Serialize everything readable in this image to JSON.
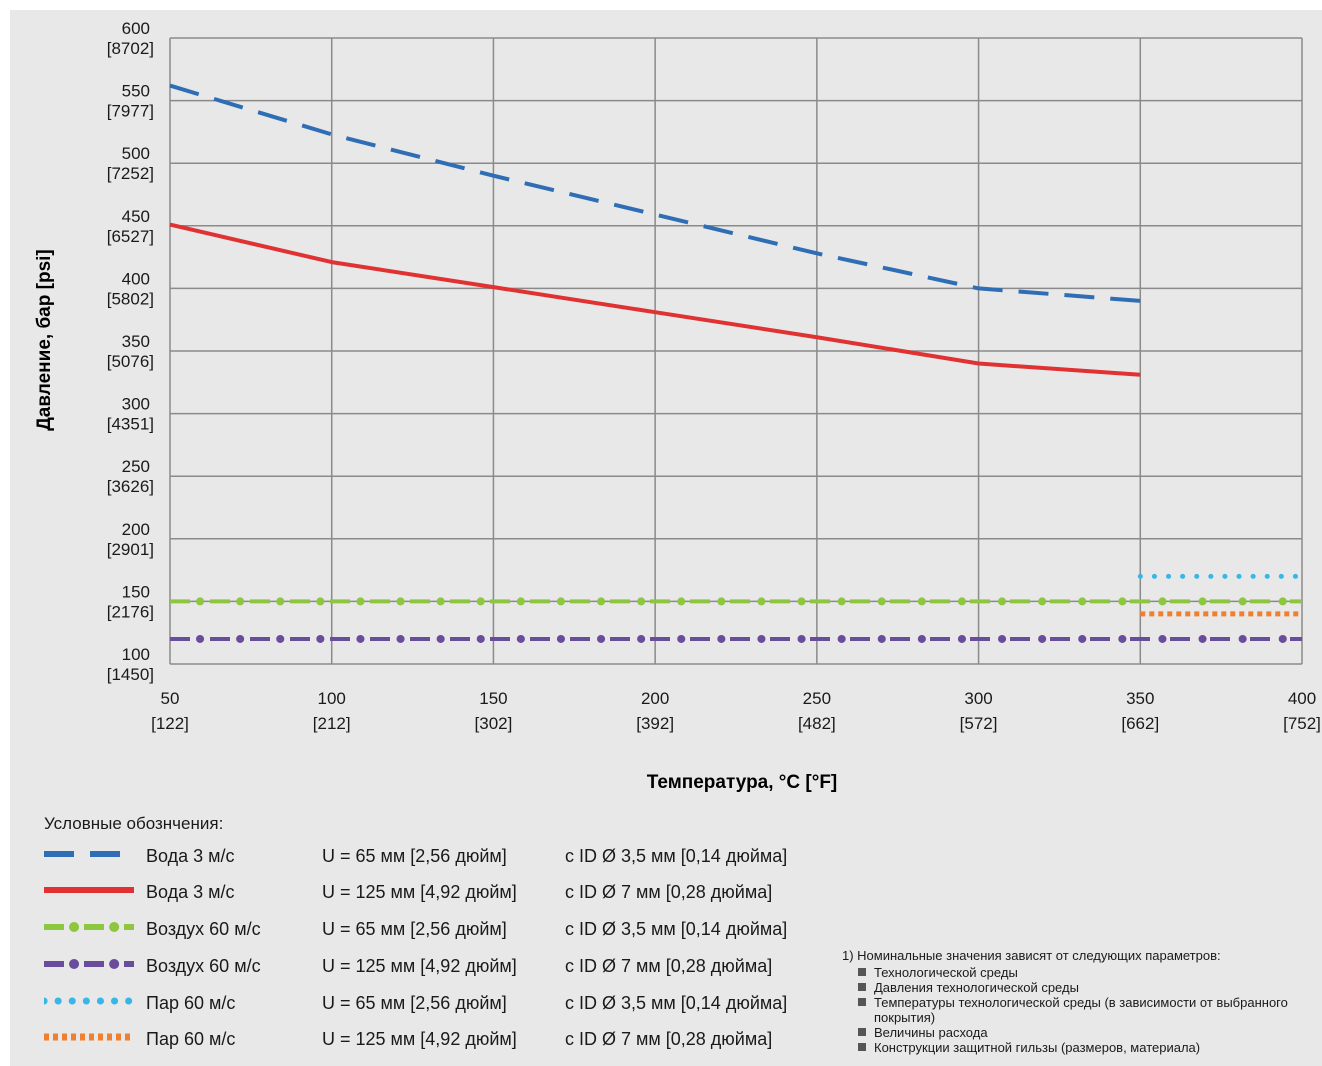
{
  "chart_data": {
    "type": "line",
    "xlabel": "Температура, °C [°F]",
    "ylabel": "Давление, бар [psi]",
    "xlim": [
      50,
      400
    ],
    "ylim": [
      100,
      600
    ],
    "grid": true,
    "x_ticks": [
      {
        "value": 50,
        "label": "50",
        "sub": "[122]"
      },
      {
        "value": 100,
        "label": "100",
        "sub": "[212]"
      },
      {
        "value": 150,
        "label": "150",
        "sub": "[302]"
      },
      {
        "value": 200,
        "label": "200",
        "sub": "[392]"
      },
      {
        "value": 250,
        "label": "250",
        "sub": "[482]"
      },
      {
        "value": 300,
        "label": "300",
        "sub": "[572]"
      },
      {
        "value": 350,
        "label": "350",
        "sub": "[662]"
      },
      {
        "value": 400,
        "label": "400",
        "sub": "[752]"
      }
    ],
    "y_ticks": [
      {
        "value": 100,
        "label": "100",
        "sub": "[1450]"
      },
      {
        "value": 150,
        "label": "150",
        "sub": "[2176]"
      },
      {
        "value": 200,
        "label": "200",
        "sub": "[2901]"
      },
      {
        "value": 250,
        "label": "250",
        "sub": "[3626]"
      },
      {
        "value": 300,
        "label": "300",
        "sub": "[4351]"
      },
      {
        "value": 350,
        "label": "350",
        "sub": "[5076]"
      },
      {
        "value": 400,
        "label": "400",
        "sub": "[5802]"
      },
      {
        "value": 450,
        "label": "450",
        "sub": "[6527]"
      },
      {
        "value": 500,
        "label": "500",
        "sub": "[7252]"
      },
      {
        "value": 550,
        "label": "550",
        "sub": "[7977]"
      },
      {
        "value": 600,
        "label": "600",
        "sub": "[8702]"
      }
    ],
    "series": [
      {
        "name": "Вода 3 м/с",
        "color": "#2f6eb5",
        "style": "dash",
        "x": [
          50,
          100,
          150,
          200,
          250,
          300,
          350
        ],
        "y": [
          562,
          523,
          490,
          459,
          428,
          400,
          390
        ]
      },
      {
        "name": "Вода 3 м/с",
        "color": "#e03232",
        "style": "solid",
        "x": [
          50,
          100,
          150,
          200,
          250,
          300,
          350
        ],
        "y": [
          451,
          421,
          401,
          381,
          361,
          340,
          331
        ]
      },
      {
        "name": "Воздух 60 м/с",
        "color": "#8dc63f",
        "style": "dashdot",
        "x": [
          50,
          400
        ],
        "y": [
          150,
          150
        ]
      },
      {
        "name": "Воздух 60 м/с",
        "color": "#6a4c9c",
        "style": "dashdot",
        "x": [
          50,
          400
        ],
        "y": [
          120,
          120
        ]
      },
      {
        "name": "Пар 60 м/с",
        "color": "#38b6e8",
        "style": "dot",
        "x": [
          350,
          400
        ],
        "y": [
          170,
          170
        ]
      },
      {
        "name": "Пар 60 м/с",
        "color": "#f07f2e",
        "style": "shortdash",
        "x": [
          350,
          400
        ],
        "y": [
          140,
          140
        ]
      }
    ]
  },
  "legend": {
    "title": "Условные обознчения:",
    "rows": [
      {
        "medium": "Вода 3 м/с",
        "u": "U = 65 мм [2,56 дюйм]",
        "id": "с ID Ø 3,5 мм [0,14 дюйма]"
      },
      {
        "medium": "Вода 3 м/с",
        "u": "U = 125 мм [4,92 дюйм]",
        "id": "с ID Ø 7 мм [0,28 дюйма]"
      },
      {
        "medium": "Воздух 60 м/с",
        "u": "U = 65 мм [2,56 дюйм]",
        "id": "с ID Ø 3,5 мм [0,14 дюйма]"
      },
      {
        "medium": "Воздух 60 м/с",
        "u": "U = 125 мм [4,92 дюйм]",
        "id": "с ID Ø 7 мм [0,28 дюйма]"
      },
      {
        "medium": "Пар 60 м/с",
        "u": "U = 65 мм [2,56 дюйм]",
        "id": "с ID Ø 3,5 мм [0,14 дюйма]"
      },
      {
        "medium": "Пар 60 м/с",
        "u": "U = 125 мм [4,92 дюйм]",
        "id": "с ID Ø 7 мм [0,28 дюйма]"
      }
    ]
  },
  "notes": {
    "title": "1) Номинальные значения зависят от следующих параметров:",
    "items": [
      "Технологической среды",
      "Давления технологической среды",
      "Температуры технологической среды (в зависимости от выбранного покрытия)",
      "Величины расхода",
      "Конструкции защитной гильзы (размеров, материала)"
    ]
  }
}
